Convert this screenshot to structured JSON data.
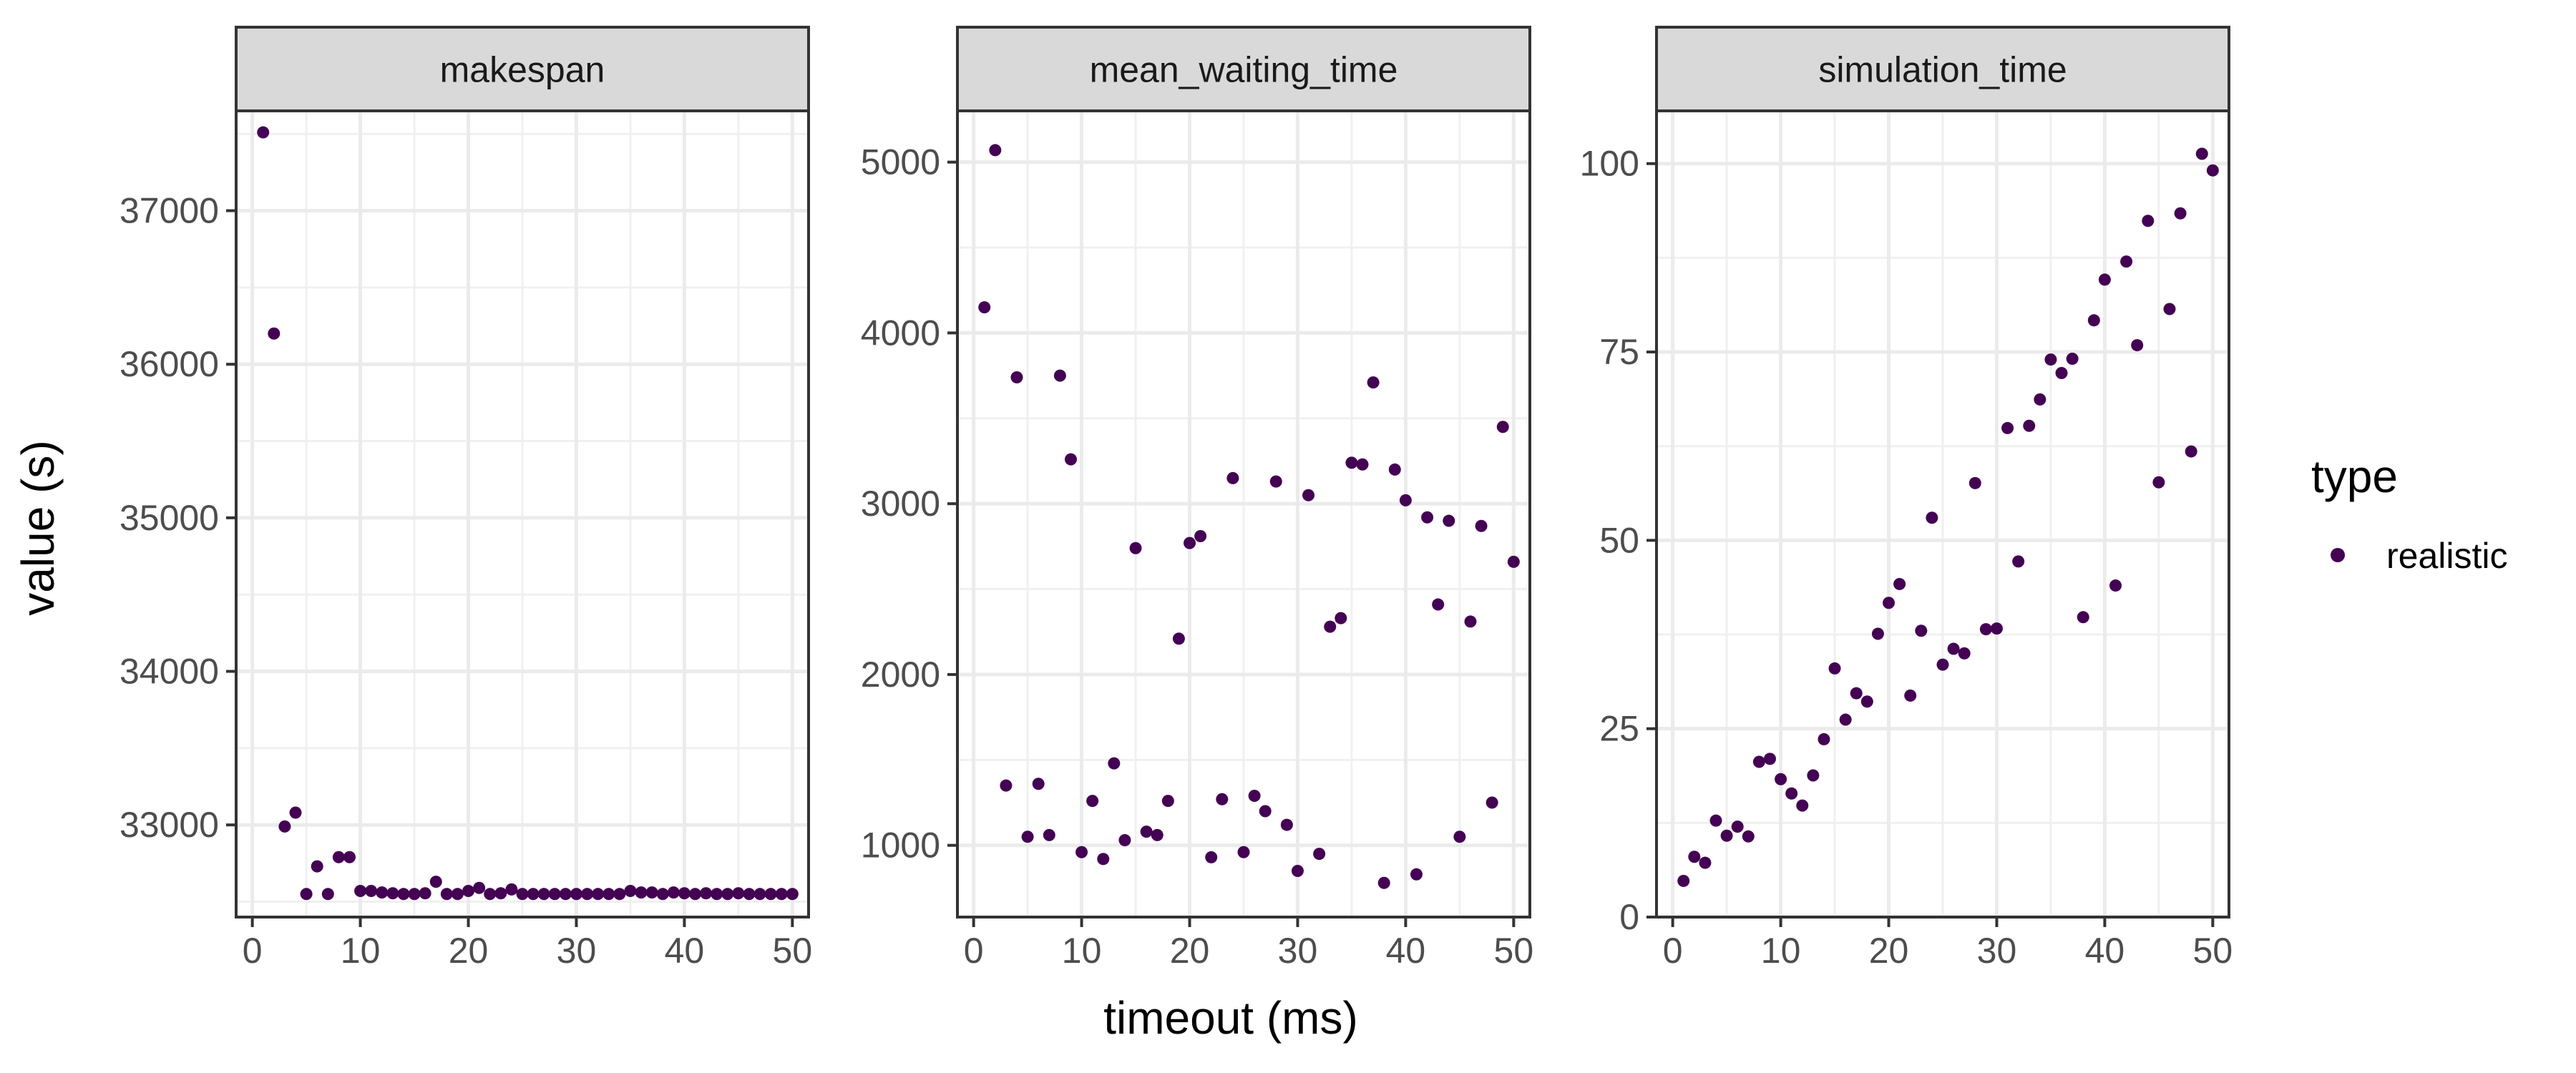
{
  "chart_data": {
    "type": "scatter",
    "xlabel": "timeout (ms)",
    "ylabel": "value (s)",
    "legend": {
      "title": "type",
      "position": "right",
      "entries": [
        {
          "label": "realistic",
          "color": "#440154"
        }
      ]
    },
    "grid": true,
    "point_color": "#440154",
    "panels": [
      {
        "title": "makespan",
        "xlim": [
          -1.5,
          51.5
        ],
        "ylim": [
          32400,
          37650
        ],
        "xticks": [
          0,
          10,
          20,
          30,
          40,
          50
        ],
        "yticks": [
          33000,
          34000,
          35000,
          36000,
          37000
        ],
        "points": [
          [
            1,
            37510
          ],
          [
            2,
            36200
          ],
          [
            3,
            32990
          ],
          [
            4,
            33080
          ],
          [
            5,
            32550
          ],
          [
            6,
            32730
          ],
          [
            7,
            32550
          ],
          [
            8,
            32790
          ],
          [
            9,
            32790
          ],
          [
            10,
            32570
          ],
          [
            11,
            32570
          ],
          [
            12,
            32560
          ],
          [
            13,
            32555
          ],
          [
            14,
            32550
          ],
          [
            15,
            32550
          ],
          [
            16,
            32555
          ],
          [
            17,
            32630
          ],
          [
            18,
            32550
          ],
          [
            19,
            32550
          ],
          [
            20,
            32570
          ],
          [
            21,
            32590
          ],
          [
            22,
            32550
          ],
          [
            23,
            32555
          ],
          [
            24,
            32580
          ],
          [
            25,
            32550
          ],
          [
            26,
            32550
          ],
          [
            27,
            32550
          ],
          [
            28,
            32550
          ],
          [
            29,
            32550
          ],
          [
            30,
            32550
          ],
          [
            31,
            32550
          ],
          [
            32,
            32550
          ],
          [
            33,
            32550
          ],
          [
            34,
            32550
          ],
          [
            35,
            32570
          ],
          [
            36,
            32560
          ],
          [
            37,
            32560
          ],
          [
            38,
            32550
          ],
          [
            39,
            32560
          ],
          [
            40,
            32555
          ],
          [
            41,
            32550
          ],
          [
            42,
            32555
          ],
          [
            43,
            32550
          ],
          [
            44,
            32550
          ],
          [
            45,
            32555
          ],
          [
            46,
            32550
          ],
          [
            47,
            32550
          ],
          [
            48,
            32550
          ],
          [
            49,
            32550
          ],
          [
            50,
            32550
          ]
        ]
      },
      {
        "title": "mean_waiting_time",
        "xlim": [
          -1.5,
          51.5
        ],
        "ylim": [
          580,
          5300
        ],
        "xticks": [
          0,
          10,
          20,
          30,
          40,
          50
        ],
        "yticks": [
          1000,
          2000,
          3000,
          4000,
          5000
        ],
        "points": [
          [
            1,
            4150
          ],
          [
            2,
            5070
          ],
          [
            3,
            1350
          ],
          [
            4,
            3740
          ],
          [
            5,
            1050
          ],
          [
            6,
            1360
          ],
          [
            7,
            1060
          ],
          [
            8,
            3750
          ],
          [
            9,
            3260
          ],
          [
            10,
            960
          ],
          [
            11,
            1260
          ],
          [
            12,
            920
          ],
          [
            13,
            1480
          ],
          [
            14,
            1030
          ],
          [
            15,
            2740
          ],
          [
            16,
            1080
          ],
          [
            17,
            1060
          ],
          [
            18,
            1260
          ],
          [
            19,
            2210
          ],
          [
            20,
            2770
          ],
          [
            21,
            2810
          ],
          [
            22,
            930
          ],
          [
            23,
            1270
          ],
          [
            24,
            3150
          ],
          [
            25,
            960
          ],
          [
            26,
            1290
          ],
          [
            27,
            1200
          ],
          [
            28,
            3130
          ],
          [
            29,
            1120
          ],
          [
            30,
            850
          ],
          [
            31,
            3050
          ],
          [
            32,
            950
          ],
          [
            33,
            2280
          ],
          [
            34,
            2330
          ],
          [
            35,
            3240
          ],
          [
            36,
            3230
          ],
          [
            37,
            3710
          ],
          [
            38,
            780
          ],
          [
            39,
            3200
          ],
          [
            40,
            3020
          ],
          [
            41,
            830
          ],
          [
            42,
            2920
          ],
          [
            43,
            2410
          ],
          [
            44,
            2900
          ],
          [
            45,
            1050
          ],
          [
            46,
            2310
          ],
          [
            47,
            2870
          ],
          [
            48,
            1250
          ],
          [
            49,
            3450
          ],
          [
            50,
            2660
          ]
        ]
      },
      {
        "title": "simulation_time",
        "xlim": [
          -1.5,
          51.5
        ],
        "ylim": [
          0,
          107
        ],
        "xticks": [
          0,
          10,
          20,
          30,
          40,
          50
        ],
        "yticks": [
          0,
          25,
          50,
          75,
          100
        ],
        "points": [
          [
            1,
            4.8
          ],
          [
            2,
            8
          ],
          [
            3,
            7.2
          ],
          [
            4,
            12.8
          ],
          [
            5,
            10.8
          ],
          [
            6,
            12
          ],
          [
            7,
            10.7
          ],
          [
            8,
            20.6
          ],
          [
            9,
            21
          ],
          [
            10,
            18.3
          ],
          [
            11,
            16.4
          ],
          [
            12,
            14.8
          ],
          [
            13,
            18.8
          ],
          [
            14,
            23.6
          ],
          [
            15,
            33
          ],
          [
            16,
            26.2
          ],
          [
            17,
            29.7
          ],
          [
            18,
            28.6
          ],
          [
            19,
            37.6
          ],
          [
            20,
            41.7
          ],
          [
            21,
            44.2
          ],
          [
            22,
            29.4
          ],
          [
            23,
            38
          ],
          [
            24,
            53
          ],
          [
            25,
            33.5
          ],
          [
            26,
            35.6
          ],
          [
            27,
            35
          ],
          [
            28,
            57.6
          ],
          [
            29,
            38.2
          ],
          [
            30,
            38.3
          ],
          [
            31,
            64.9
          ],
          [
            32,
            47.2
          ],
          [
            33,
            65.2
          ],
          [
            34,
            68.7
          ],
          [
            35,
            74
          ],
          [
            36,
            72.2
          ],
          [
            37,
            74.1
          ],
          [
            38,
            39.8
          ],
          [
            39,
            79.2
          ],
          [
            40,
            84.6
          ],
          [
            41,
            44
          ],
          [
            42,
            87
          ],
          [
            43,
            75.9
          ],
          [
            44,
            92.4
          ],
          [
            45,
            57.7
          ],
          [
            46,
            80.7
          ],
          [
            47,
            93.4
          ],
          [
            48,
            61.8
          ],
          [
            49,
            101.3
          ],
          [
            50,
            99.1
          ]
        ]
      }
    ]
  }
}
